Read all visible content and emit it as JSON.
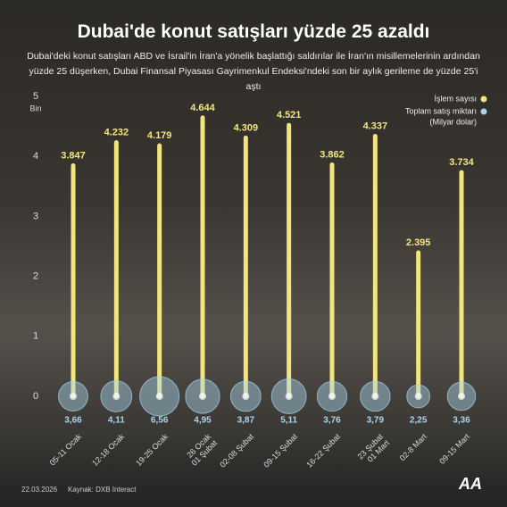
{
  "chart_data": {
    "type": "bar_bubble",
    "title": "Dubai'de konut satışları yüzde 25 azaldı",
    "subtitle": "Dubai'deki konut satışları ABD ve İsrail'in İran'a yönelik başlattığı saldırılar ile İran'ın misillemelerinin ardından yüzde 25 düşerken, Dubai Finansal Piyasası Gayrimenkul Endeksi'ndeki son bir aylık gerileme de yüzde 25'i aştı",
    "y_label": "Bin",
    "categories": [
      "05-11 Ocak",
      "12-18 Ocak",
      "19-25 Ocak",
      "26 Ocak\n01 Şubat",
      "02-08 Şubat",
      "09-15 Şubat",
      "16-22 Şubat",
      "23 Şubat\n01 Mart",
      "02-8 Mart",
      "09-15 Mart"
    ],
    "series": [
      {
        "name": "İşlem sayısı",
        "color": "#f3e57e",
        "values": [
          3.847,
          4.232,
          4.179,
          4.644,
          4.309,
          4.521,
          3.862,
          4.337,
          2.395,
          3.734
        ]
      },
      {
        "name": "Toplam satış miktarı",
        "unit": "(Milyar dolar)",
        "color": "#a9d4ea",
        "values": [
          3.66,
          4.11,
          6.56,
          4.95,
          3.87,
          5.11,
          3.76,
          3.79,
          2.25,
          3.36
        ],
        "value_labels": [
          "3,66",
          "4,11",
          "6,56",
          "4,95",
          "3,87",
          "5,11",
          "3,76",
          "3,79",
          "2,25",
          "3,36"
        ]
      }
    ],
    "ylim": [
      0,
      5
    ],
    "yticks": [
      0,
      1,
      2,
      3,
      4,
      5
    ],
    "date": "22.03.2026",
    "source": "Kaynak: DXB Interact",
    "logo": "AA"
  }
}
